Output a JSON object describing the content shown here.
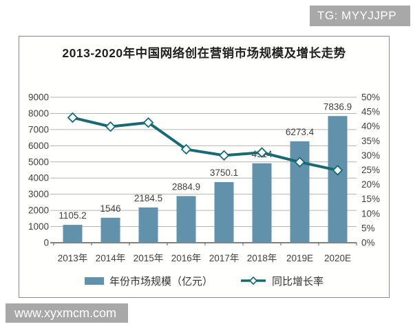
{
  "overlays": {
    "tg_badge": "TG: MYYJJPP",
    "watermark": "www.xyxmcm.com"
  },
  "colors": {
    "badge_bg": "#a8a8a8",
    "badge_text": "#ffffff",
    "bar": "#6191ab",
    "line": "#176a74",
    "marker_fill": "#ffffff",
    "grid": "#b3b3b3",
    "axis": "#595959",
    "label_text": "#404040",
    "box_border": "#8a8a8a",
    "background": "#ffffff"
  },
  "chart_data": {
    "type": "bar",
    "combo": "bar+line",
    "title": "2013-2020年中国网络创在营销市场规模及增长走势",
    "categories": [
      "2013年",
      "2014年",
      "2015年",
      "2016年",
      "2017年",
      "2018年",
      "2019E",
      "2020E"
    ],
    "series": [
      {
        "name": "年份市场规模（亿元）",
        "chart_type": "bar",
        "axis": "left",
        "values": [
          1105.2,
          1546,
          2184.5,
          2884.9,
          3750.1,
          4914,
          6273.4,
          7836.9
        ],
        "value_labels": [
          "1105.2",
          "1546",
          "2184.5",
          "2884.9",
          "3750.1",
          "4914",
          "6273.4",
          "7836.9"
        ],
        "color": "#6191ab"
      },
      {
        "name": "同比增长率",
        "chart_type": "line",
        "axis": "right",
        "values_percent": [
          43,
          39.9,
          41.3,
          32.1,
          30,
          31,
          27.7,
          24.9
        ],
        "color": "#176a74",
        "marker": "diamond",
        "marker_fill": "#ffffff"
      }
    ],
    "left_axis": {
      "min": 0,
      "max": 9000,
      "step": 1000,
      "tick_labels": [
        "0",
        "1000",
        "2000",
        "3000",
        "4000",
        "5000",
        "6000",
        "7000",
        "8000",
        "9000"
      ]
    },
    "right_axis": {
      "min": 0,
      "max": 50,
      "step": 5,
      "unit": "%",
      "tick_labels": [
        "0%",
        "5%",
        "10%",
        "15%",
        "20%",
        "25%",
        "30%",
        "35%",
        "40%",
        "45%",
        "50%"
      ]
    },
    "grid": true,
    "legend_position": "bottom"
  }
}
